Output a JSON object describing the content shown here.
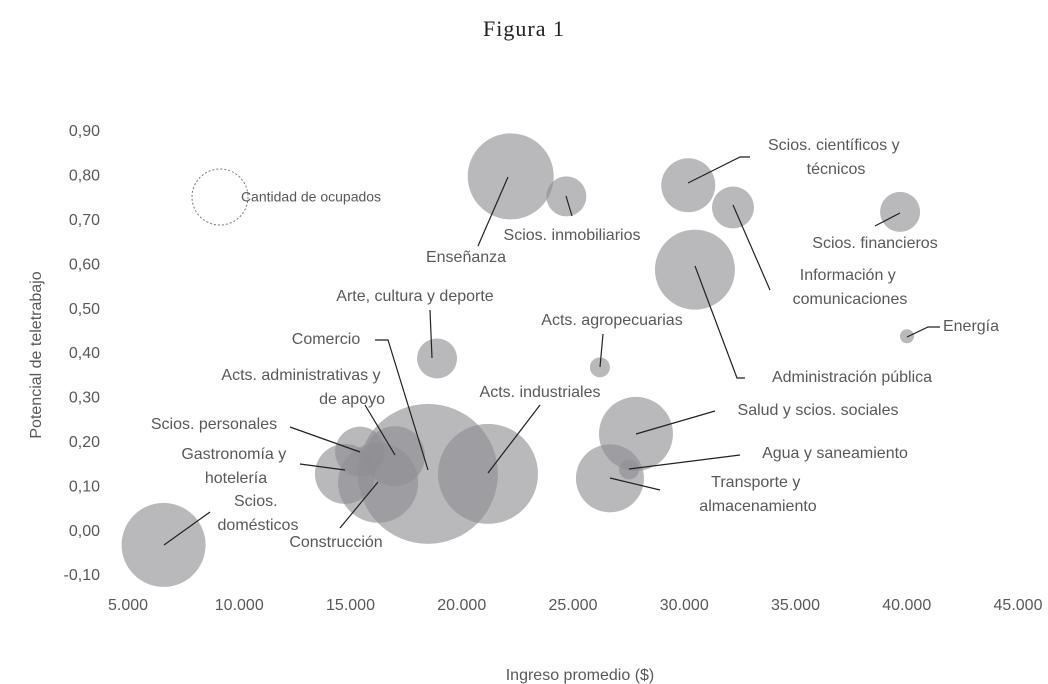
{
  "chart_data": {
    "type": "bubble",
    "title": "Figura 1",
    "x_label": "Ingreso promedio ($)",
    "y_label": "Potencial de teletrabajo",
    "size_legend": "Cantidad de ocupados",
    "categories": [
      "Scios. domésticos",
      "Gastronomía y hotelería",
      "Scios. personales",
      "Construcción",
      "Acts. administrativas y de apoyo",
      "Comercio",
      "Arte, cultura y deporte",
      "Enseñanza",
      "Scios. inmobiliarios",
      "Acts. industriales",
      "Acts. agropecuarias",
      "Salud y scios. sociales",
      "Agua y saneamiento",
      "Transporte y almacenamiento",
      "Scios. científicos y técnicos",
      "Información y comunicaciones",
      "Administración pública",
      "Scios. financieros",
      "Energía"
    ],
    "x": [
      6600,
      14750,
      15430,
      16240,
      17000,
      18480,
      18890,
      22200,
      24700,
      21180,
      26210,
      27830,
      27520,
      26660,
      30180,
      32190,
      30480,
      39700,
      40010
    ],
    "y": [
      -0.03,
      0.13,
      0.18,
      0.11,
      0.17,
      0.13,
      0.39,
      0.8,
      0.755,
      0.13,
      0.37,
      0.22,
      0.14,
      0.12,
      0.78,
      0.73,
      0.59,
      0.72,
      0.44
    ],
    "sizes": [
      1764,
      900,
      625,
      1600,
      900,
      4900,
      400,
      1849,
      400,
      2500,
      100,
      1369,
      100,
      1156,
      729,
      441,
      1600,
      400,
      49
    ],
    "color": "#8e8e93",
    "xlim": [
      5000,
      45000
    ],
    "xticks": [
      {
        "value": 5000,
        "label": "5.000"
      },
      {
        "value": 10000,
        "label": "10.000"
      },
      {
        "value": 15000,
        "label": "15.000"
      },
      {
        "value": 20000,
        "label": "20.000"
      },
      {
        "value": 25000,
        "label": "25.000"
      },
      {
        "value": 30000,
        "label": "30.000"
      },
      {
        "value": 35000,
        "label": "35.000"
      },
      {
        "value": 40000,
        "label": "40.000"
      },
      {
        "value": 45000,
        "label": "45.000"
      }
    ],
    "ylim": [
      -0.1,
      0.9
    ],
    "yticks": [
      {
        "value": -0.1,
        "label": "-0,10"
      },
      {
        "value": 0,
        "label": "0,00"
      },
      {
        "value": 0.1,
        "label": "0,10"
      },
      {
        "value": 0.2,
        "label": "0,20"
      },
      {
        "value": 0.3,
        "label": "0,30"
      },
      {
        "value": 0.4,
        "label": "0,40"
      },
      {
        "value": 0.5,
        "label": "0,50"
      },
      {
        "value": 0.6,
        "label": "0,60"
      },
      {
        "value": 0.7,
        "label": "0,70"
      },
      {
        "value": 0.8,
        "label": "0,80"
      },
      {
        "value": 0.9,
        "label": "0,90"
      }
    ],
    "grid": false
  }
}
